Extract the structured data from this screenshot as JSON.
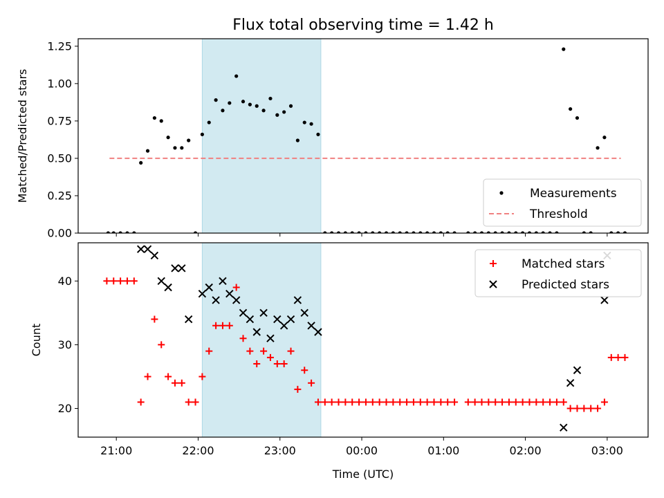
{
  "title": "Flux total observing time = 1.42 h",
  "xlabel": "Time (UTC)",
  "x_ticks": [
    "21:00",
    "22:00",
    "23:00",
    "00:00",
    "01:00",
    "02:00",
    "03:00"
  ],
  "colors": {
    "measurement": "#000000",
    "threshold": "#f08080",
    "matched": "#ff0000",
    "predicted": "#000000",
    "shade": "#add8e6"
  },
  "chart_data": [
    {
      "type": "scatter",
      "ylabel": "Matched/Predicted stars",
      "ylim": [
        0,
        1.3
      ],
      "y_ticks": [
        "0.00",
        "0.25",
        "0.50",
        "0.75",
        "1.00",
        "1.25"
      ],
      "legend": {
        "position": "lower-right",
        "entries": [
          "Measurements",
          "Threshold"
        ]
      },
      "shaded_span": [
        "22:03",
        "23:30"
      ],
      "threshold": {
        "name": "Threshold",
        "value": 0.5,
        "x_range": [
          "20:55",
          "03:10"
        ]
      },
      "series": [
        {
          "name": "Measurements",
          "x": [
            "20:54",
            "20:58",
            "21:03",
            "21:08",
            "21:13",
            "21:18",
            "21:23",
            "21:28",
            "21:33",
            "21:38",
            "21:43",
            "21:48",
            "21:53",
            "21:58",
            "22:03",
            "22:08",
            "22:13",
            "22:18",
            "22:23",
            "22:28",
            "22:33",
            "22:38",
            "22:43",
            "22:48",
            "22:53",
            "22:58",
            "23:03",
            "23:08",
            "23:13",
            "23:18",
            "23:23",
            "23:28",
            "23:33",
            "23:38",
            "23:43",
            "23:48",
            "23:53",
            "23:58",
            "00:03",
            "00:08",
            "00:13",
            "00:18",
            "00:23",
            "00:28",
            "00:33",
            "00:38",
            "00:43",
            "00:48",
            "00:53",
            "00:58",
            "01:03",
            "01:08",
            "01:18",
            "01:23",
            "01:28",
            "01:33",
            "01:38",
            "01:43",
            "01:48",
            "01:53",
            "01:58",
            "02:03",
            "02:08",
            "02:13",
            "02:18",
            "02:23",
            "02:28",
            "02:33",
            "02:38",
            "02:43",
            "02:48",
            "02:53",
            "02:58",
            "03:03",
            "03:08",
            "03:13"
          ],
          "y": [
            0,
            0,
            0,
            0,
            0,
            0.47,
            0.55,
            0.77,
            0.75,
            0.64,
            0.57,
            0.57,
            0.62,
            0,
            0.66,
            0.74,
            0.89,
            0.82,
            0.87,
            1.05,
            0.88,
            0.86,
            0.85,
            0.82,
            0.9,
            0.79,
            0.81,
            0.85,
            0.62,
            0.74,
            0.73,
            0.66,
            0,
            0,
            0,
            0,
            0,
            0,
            0,
            0,
            0,
            0,
            0,
            0,
            0,
            0,
            0,
            0,
            0,
            0,
            0,
            0,
            0,
            0,
            0,
            0,
            0,
            0,
            0,
            0,
            0,
            0,
            0,
            0,
            0,
            0,
            1.23,
            0.83,
            0.77,
            0,
            0,
            0.57,
            0.64,
            0,
            0,
            0
          ]
        }
      ]
    },
    {
      "type": "scatter",
      "ylabel": "Count",
      "ylim": [
        15.5,
        46
      ],
      "y_ticks": [
        "20",
        "30",
        "40"
      ],
      "legend": {
        "position": "upper-right",
        "entries": [
          "Matched stars",
          "Predicted stars"
        ]
      },
      "shaded_span": [
        "22:03",
        "23:30"
      ],
      "series": [
        {
          "name": "Matched stars",
          "x": [
            "20:53",
            "20:58",
            "21:03",
            "21:08",
            "21:13",
            "21:18",
            "21:23",
            "21:28",
            "21:33",
            "21:38",
            "21:43",
            "21:48",
            "21:53",
            "21:58",
            "22:03",
            "22:08",
            "22:13",
            "22:18",
            "22:23",
            "22:28",
            "22:33",
            "22:38",
            "22:43",
            "22:48",
            "22:53",
            "22:58",
            "23:03",
            "23:08",
            "23:13",
            "23:18",
            "23:23",
            "23:28",
            "23:33",
            "23:38",
            "23:43",
            "23:48",
            "23:53",
            "23:58",
            "00:03",
            "00:08",
            "00:13",
            "00:18",
            "00:23",
            "00:28",
            "00:33",
            "00:38",
            "00:43",
            "00:48",
            "00:53",
            "00:58",
            "01:03",
            "01:08",
            "01:18",
            "01:23",
            "01:28",
            "01:33",
            "01:38",
            "01:43",
            "01:48",
            "01:53",
            "01:58",
            "02:03",
            "02:08",
            "02:13",
            "02:18",
            "02:23",
            "02:28",
            "02:33",
            "02:38",
            "02:43",
            "02:48",
            "02:53",
            "02:58",
            "03:03",
            "03:08",
            "03:13"
          ],
          "y": [
            40,
            40,
            40,
            40,
            40,
            21,
            25,
            34,
            30,
            25,
            24,
            24,
            21,
            21,
            25,
            29,
            33,
            33,
            33,
            39,
            31,
            29,
            27,
            29,
            28,
            27,
            27,
            29,
            23,
            26,
            24,
            21,
            21,
            21,
            21,
            21,
            21,
            21,
            21,
            21,
            21,
            21,
            21,
            21,
            21,
            21,
            21,
            21,
            21,
            21,
            21,
            21,
            21,
            21,
            21,
            21,
            21,
            21,
            21,
            21,
            21,
            21,
            21,
            21,
            21,
            21,
            21,
            20,
            20,
            20,
            20,
            20,
            21,
            28,
            28,
            28
          ]
        },
        {
          "name": "Predicted stars",
          "x": [
            "21:18",
            "21:23",
            "21:28",
            "21:33",
            "21:38",
            "21:43",
            "21:48",
            "21:53",
            "22:03",
            "22:08",
            "22:13",
            "22:18",
            "22:23",
            "22:28",
            "22:33",
            "22:38",
            "22:43",
            "22:48",
            "22:53",
            "22:58",
            "23:03",
            "23:08",
            "23:13",
            "23:18",
            "23:23",
            "23:28",
            "02:28",
            "02:33",
            "02:38",
            "02:58",
            "03:00"
          ],
          "y": [
            45,
            45,
            44,
            40,
            39,
            42,
            42,
            34,
            38,
            39,
            37,
            40,
            38,
            37,
            35,
            34,
            32,
            35,
            31,
            34,
            33,
            34,
            37,
            35,
            33,
            32,
            17,
            24,
            26,
            37,
            44
          ]
        }
      ]
    }
  ]
}
